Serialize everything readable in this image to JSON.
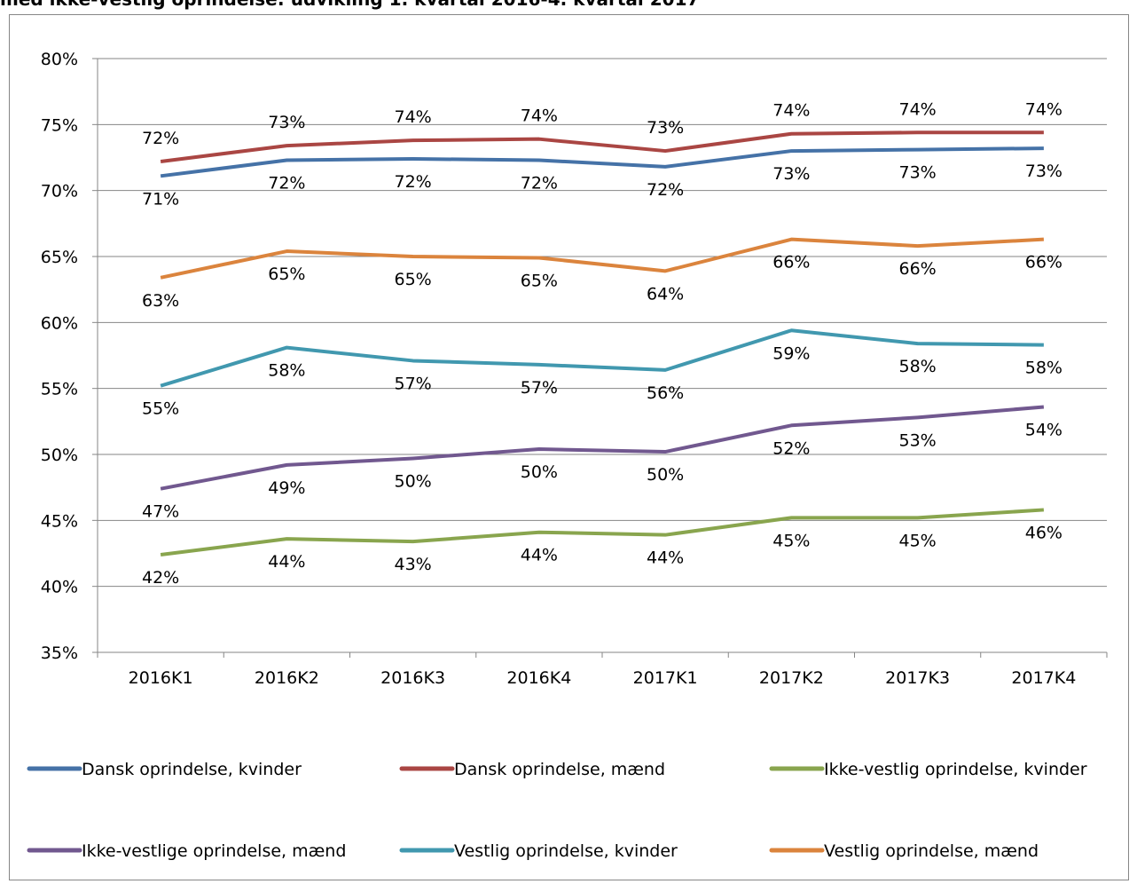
{
  "chart_data": {
    "type": "line",
    "title": "med ikke-vestlig oprindelse: udvikling 1. kvartal 2016-4. kvartal 2017",
    "categories": [
      "2016K1",
      "2016K2",
      "2016K3",
      "2016K4",
      "2017K1",
      "2017K2",
      "2017K3",
      "2017K4"
    ],
    "ylim": [
      35,
      80
    ],
    "yticks": [
      {
        "value": 35,
        "label": "35%"
      },
      {
        "value": 40,
        "label": "40%"
      },
      {
        "value": 45,
        "label": "45%"
      },
      {
        "value": 50,
        "label": "50%"
      },
      {
        "value": 55,
        "label": "55%"
      },
      {
        "value": 60,
        "label": "60%"
      },
      {
        "value": 65,
        "label": "65%"
      },
      {
        "value": 70,
        "label": "70%"
      },
      {
        "value": 75,
        "label": "75%"
      },
      {
        "value": 80,
        "label": "80%"
      }
    ],
    "grid": true,
    "legend": "bottom",
    "series": [
      {
        "name": "Dansk oprindelse, kvinder",
        "color": "#4572A7",
        "values": [
          71.1,
          72.3,
          72.4,
          72.3,
          71.8,
          73.0,
          73.1,
          73.2
        ],
        "value_labels": [
          "71%",
          "72%",
          "72%",
          "72%",
          "72%",
          "73%",
          "73%",
          "73%"
        ]
      },
      {
        "name": "Dansk oprindelse, mænd",
        "color": "#AA4643",
        "values": [
          72.2,
          73.4,
          73.8,
          73.9,
          73.0,
          74.3,
          74.4,
          74.4
        ],
        "value_labels": [
          "72%",
          "73%",
          "74%",
          "74%",
          "73%",
          "74%",
          "74%",
          "74%"
        ]
      },
      {
        "name": "Ikke-vestlig oprindelse, kvinder",
        "color": "#89A54E",
        "values": [
          42.4,
          43.6,
          43.4,
          44.1,
          43.9,
          45.2,
          45.2,
          45.8
        ],
        "value_labels": [
          "42%",
          "44%",
          "43%",
          "44%",
          "44%",
          "45%",
          "45%",
          "46%"
        ]
      },
      {
        "name": "Ikke-vestlige oprindelse, mænd",
        "color": "#71588F",
        "values": [
          47.4,
          49.2,
          49.7,
          50.4,
          50.2,
          52.2,
          52.8,
          53.6
        ],
        "value_labels": [
          "47%",
          "49%",
          "50%",
          "50%",
          "50%",
          "52%",
          "53%",
          "54%"
        ]
      },
      {
        "name": "Vestlig oprindelse, kvinder",
        "color": "#4198AF",
        "values": [
          55.2,
          58.1,
          57.1,
          56.8,
          56.4,
          59.4,
          58.4,
          58.3
        ],
        "value_labels": [
          "55%",
          "58%",
          "57%",
          "57%",
          "56%",
          "59%",
          "58%",
          "58%"
        ]
      },
      {
        "name": "Vestlig oprindelse, mænd",
        "color": "#DB843D",
        "values": [
          63.4,
          65.4,
          65.0,
          64.9,
          63.9,
          66.3,
          65.8,
          66.3
        ],
        "value_labels": [
          "63%",
          "65%",
          "65%",
          "65%",
          "64%",
          "66%",
          "66%",
          "66%"
        ]
      }
    ]
  }
}
